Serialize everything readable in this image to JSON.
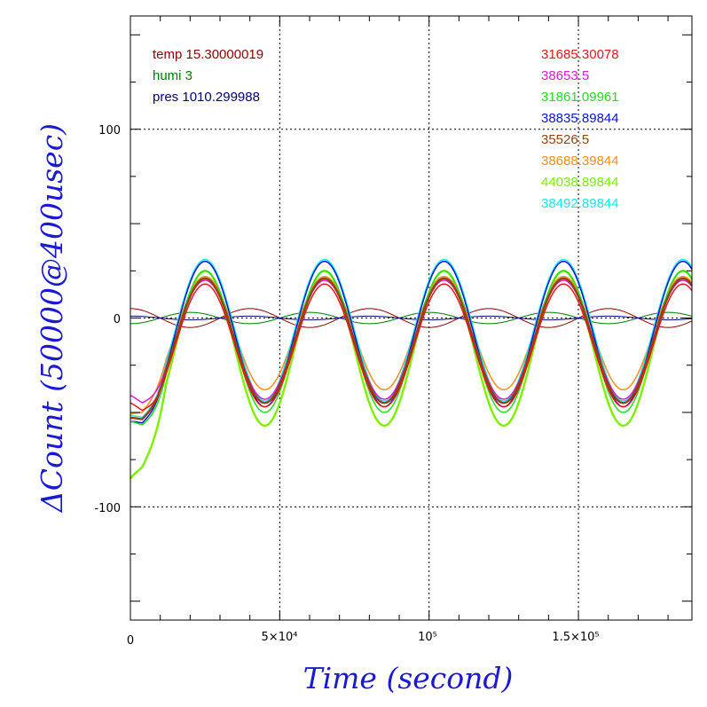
{
  "chart_data": {
    "type": "line",
    "xlabel": "Time (second)",
    "ylabel": "ΔCount (50000@400usec)",
    "xlim": [
      0,
      188000
    ],
    "ylim": [
      -160,
      160
    ],
    "x_ticks": [
      {
        "value": 0,
        "label": "0"
      },
      {
        "value": 50000,
        "label": "5×10⁴"
      },
      {
        "value": 100000,
        "label": "10⁵"
      },
      {
        "value": 150000,
        "label": "1.5×10⁵"
      }
    ],
    "y_ticks": [
      {
        "value": 100,
        "label": "100"
      },
      {
        "value": 0,
        "label": "0"
      },
      {
        "value": -100,
        "label": "-100"
      }
    ],
    "grid": true,
    "legend_left": [
      {
        "label": "temp 15.30000019",
        "color": "#8b0000"
      },
      {
        "label": "humi 3",
        "color": "#007a00"
      },
      {
        "label": "pres 1010.299988",
        "color": "#00007a"
      }
    ],
    "legend_right": [
      {
        "label": "31685.30078",
        "color": "#e8161e"
      },
      {
        "label": "38653.5",
        "color": "#e01ad8"
      },
      {
        "label": "31861.09961",
        "color": "#1ee01e"
      },
      {
        "label": "38835.89844",
        "color": "#0a14d2"
      },
      {
        "label": "35526.5",
        "color": "#8b4513"
      },
      {
        "label": "38688.39844",
        "color": "#ff8c1a"
      },
      {
        "label": "44038.89844",
        "color": "#7cf000"
      },
      {
        "label": "38492.89844",
        "color": "#10ecec"
      }
    ],
    "period_s": 40000,
    "series": [
      {
        "color": "#e8161e",
        "peak": 18,
        "trough": -47,
        "start": -40
      },
      {
        "color": "#e01ad8",
        "peak": 20,
        "trough": -43,
        "start": -36
      },
      {
        "color": "#1ee01e",
        "peak": 25,
        "trough": -50,
        "start": -50
      },
      {
        "color": "#0a14d2",
        "peak": 30,
        "trough": -47,
        "start": -50
      },
      {
        "color": "#8b4513",
        "peak": 21,
        "trough": -45,
        "start": -48
      },
      {
        "color": "#ff8c1a",
        "peak": 22,
        "trough": -38,
        "start": -46
      },
      {
        "color": "#7cf000",
        "peak": 25,
        "trough": -57,
        "start": -80
      },
      {
        "color": "#10ecec",
        "peak": 31,
        "trough": -44,
        "start": -47
      }
    ],
    "env_series": [
      {
        "name": "temp",
        "color": "#8b0000",
        "amplitude": 5
      },
      {
        "name": "humi",
        "color": "#007a00",
        "amplitude": 3
      },
      {
        "name": "pres",
        "color": "#00007a",
        "amplitude": 1
      }
    ]
  }
}
